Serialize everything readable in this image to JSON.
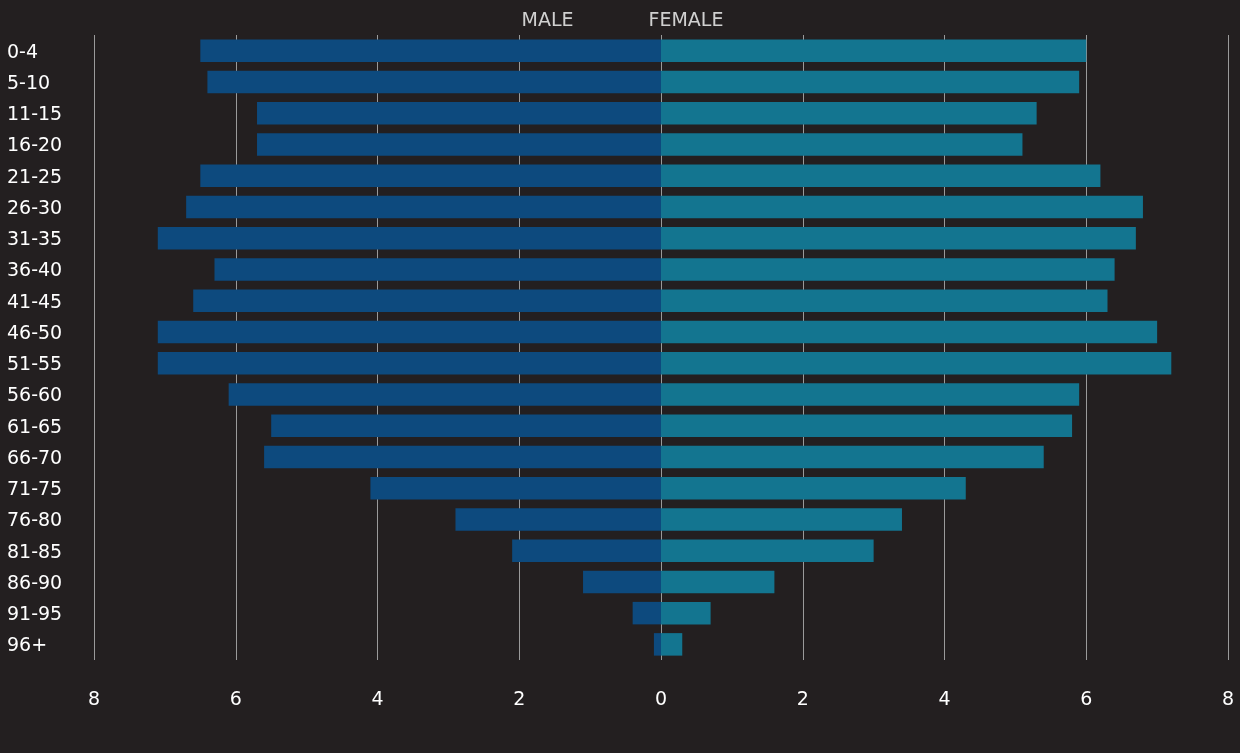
{
  "chart_data": {
    "type": "bar",
    "orientation": "horizontal",
    "categories": [
      "0-4",
      "5-10",
      "11-15",
      "16-20",
      "21-25",
      "26-30",
      "31-35",
      "36-40",
      "41-45",
      "46-50",
      "51-55",
      "56-60",
      "61-65",
      "66-70",
      "71-75",
      "76-80",
      "81-85",
      "86-90",
      "91-95",
      "96+"
    ],
    "series": [
      {
        "name": "MALE",
        "color": "#0d4a7e",
        "values": [
          -6.5,
          -6.4,
          -5.7,
          -5.7,
          -6.5,
          -6.7,
          -7.1,
          -6.3,
          -6.6,
          -7.1,
          -7.1,
          -6.1,
          -5.5,
          -5.6,
          -4.1,
          -2.9,
          -2.1,
          -1.1,
          -0.4,
          -0.1
        ]
      },
      {
        "name": "FEMALE",
        "color": "#137590",
        "values": [
          6.0,
          5.9,
          5.3,
          5.1,
          6.2,
          6.8,
          6.7,
          6.4,
          6.3,
          7.0,
          7.2,
          5.9,
          5.8,
          5.4,
          4.3,
          3.4,
          3.0,
          1.6,
          0.7,
          0.3
        ]
      }
    ],
    "xlim": [
      -8,
      8
    ],
    "xticks": [
      {
        "value": -8,
        "label": "8"
      },
      {
        "value": -6,
        "label": "6"
      },
      {
        "value": -4,
        "label": "4"
      },
      {
        "value": -2,
        "label": "2"
      },
      0,
      2,
      4,
      6,
      8
    ],
    "stacked": true,
    "grid": "x",
    "legend": "top"
  }
}
